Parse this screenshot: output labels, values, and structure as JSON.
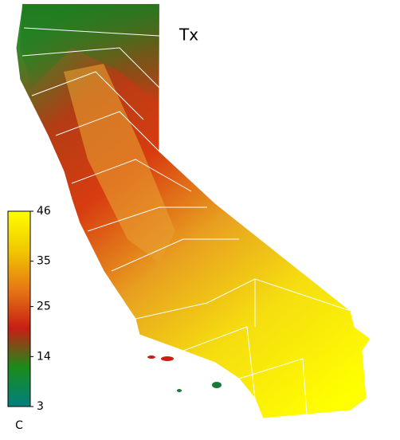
{
  "map": {
    "title": "Tx",
    "colorbar": {
      "range": [
        3,
        46
      ],
      "ticks": [
        3,
        14,
        25,
        35,
        46
      ],
      "unit": "C",
      "colors": [
        "#008080",
        "#1a8c1a",
        "#c81e14",
        "#e67814",
        "#f0c800",
        "#ffff00"
      ]
    }
  }
}
